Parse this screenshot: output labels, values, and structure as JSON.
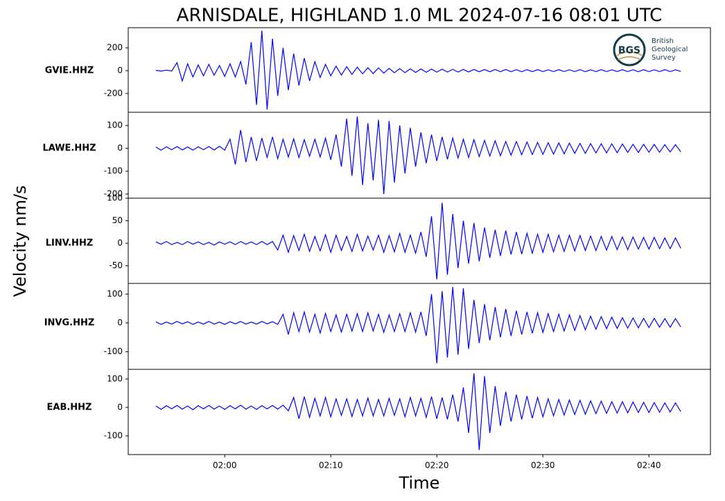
{
  "chart_data": {
    "type": "line",
    "title": "ARNISDALE, HIGHLAND 1.0 ML   2024-07-16 08:01 UTC",
    "xlabel": "Time",
    "ylabel": "Velocity nm/s",
    "xlim": [
      -9.1,
      45.8
    ],
    "xticks": [
      {
        "value": 0,
        "label": "02:00"
      },
      {
        "value": 10,
        "label": "02:10"
      },
      {
        "value": 20,
        "label": "02:20"
      },
      {
        "value": 30,
        "label": "02:30"
      },
      {
        "value": 40,
        "label": "02:40"
      }
    ],
    "x": [
      -6.5,
      -6,
      -5.5,
      -5,
      -4.5,
      -4,
      -3.5,
      -3,
      -2.5,
      -2,
      -1.5,
      -1,
      -0.5,
      0,
      0.5,
      1,
      1.5,
      2,
      2.5,
      3,
      3.5,
      4,
      4.5,
      5,
      5.5,
      6,
      6.5,
      7,
      7.5,
      8,
      8.5,
      9,
      9.5,
      10,
      10.5,
      11,
      11.5,
      12,
      12.5,
      13,
      13.5,
      14,
      14.5,
      15,
      15.5,
      16,
      16.5,
      17,
      17.5,
      18,
      18.5,
      19,
      19.5,
      20,
      20.5,
      21,
      21.5,
      22,
      22.5,
      23,
      23.5,
      24,
      24.5,
      25,
      25.5,
      26,
      26.5,
      27,
      27.5,
      28,
      28.5,
      29,
      29.5,
      30,
      30.5,
      31,
      31.5,
      32,
      32.5,
      33,
      33.5,
      34,
      34.5,
      35,
      35.5,
      36,
      36.5,
      37,
      37.5,
      38,
      38.5,
      39,
      39.5,
      40,
      40.5,
      41,
      41.5,
      42,
      42.5,
      43
    ],
    "panels": [
      {
        "label": "GVIE.HHZ",
        "color": "#0000ff",
        "ylim": [
          -364,
          376
        ],
        "yticks": [
          -200,
          0,
          200
        ],
        "values": [
          3,
          -4,
          5,
          -3,
          70,
          -90,
          60,
          -55,
          50,
          -45,
          55,
          -40,
          45,
          -50,
          60,
          -55,
          80,
          -120,
          250,
          -300,
          350,
          -340,
          280,
          -220,
          200,
          -170,
          150,
          -130,
          110,
          -90,
          80,
          -60,
          55,
          -45,
          40,
          -38,
          35,
          -32,
          30,
          -28,
          26,
          -25,
          24,
          -22,
          20,
          -18,
          18,
          -17,
          16,
          -15,
          15,
          -14,
          14,
          -13,
          13,
          -12,
          12,
          -12,
          11,
          -11,
          11,
          -10,
          10,
          -10,
          10,
          -9,
          10,
          -9,
          9,
          -9,
          9,
          -8,
          9,
          -8,
          8,
          -8,
          9,
          -8,
          8,
          -8,
          9,
          -9,
          8,
          -8,
          9,
          -8,
          8,
          -8,
          9,
          -8,
          8,
          -9,
          9,
          -8,
          8,
          -8,
          9,
          -8,
          8,
          -7
        ]
      },
      {
        "label": "LAWE.HHZ",
        "color": "#0000ff",
        "ylim": [
          -218,
          158
        ],
        "yticks": [
          -200,
          -100,
          0,
          100
        ],
        "values": [
          6,
          -8,
          7,
          -6,
          8,
          -7,
          6,
          -8,
          7,
          -6,
          8,
          -7,
          9,
          -8,
          40,
          -70,
          80,
          -60,
          50,
          -55,
          45,
          -40,
          50,
          -45,
          40,
          -38,
          42,
          -40,
          38,
          -35,
          40,
          -38,
          45,
          -50,
          60,
          -80,
          130,
          -120,
          140,
          -160,
          110,
          -140,
          125,
          -200,
          120,
          -150,
          100,
          -110,
          90,
          -80,
          70,
          -65,
          60,
          -55,
          50,
          -48,
          45,
          -42,
          40,
          -40,
          38,
          -36,
          35,
          -34,
          33,
          -32,
          30,
          -30,
          30,
          -28,
          28,
          -27,
          26,
          -26,
          25,
          -25,
          24,
          -24,
          23,
          -22,
          22,
          -22,
          21,
          -20,
          20,
          -20,
          20,
          -19,
          19,
          -18,
          18,
          -18,
          18,
          -17,
          17,
          -17,
          16,
          -16,
          16,
          -15
        ]
      },
      {
        "label": "LINV.HHZ",
        "color": "#0000ff",
        "ylim": [
          -89,
          100
        ],
        "yticks": [
          -50,
          0,
          50,
          100
        ],
        "values": [
          3,
          -2,
          4,
          -3,
          2,
          -3,
          4,
          -2,
          3,
          -3,
          2,
          -4,
          3,
          -2,
          3,
          -3,
          4,
          -2,
          3,
          -3,
          4,
          -3,
          4,
          -15,
          18,
          -20,
          17,
          -16,
          20,
          -18,
          15,
          -17,
          19,
          -20,
          18,
          -16,
          15,
          -18,
          20,
          -17,
          16,
          -15,
          18,
          -20,
          17,
          -19,
          22,
          -20,
          18,
          -22,
          25,
          -30,
          60,
          -80,
          90,
          -70,
          65,
          -55,
          50,
          -45,
          45,
          -40,
          35,
          -32,
          30,
          -28,
          28,
          -25,
          25,
          -24,
          22,
          -22,
          20,
          -20,
          20,
          -19,
          18,
          -18,
          18,
          -17,
          17,
          -16,
          16,
          -16,
          15,
          -15,
          15,
          -14,
          14,
          -14,
          14,
          -13,
          13,
          -13,
          13,
          -12,
          12,
          -12,
          12,
          -11
        ]
      },
      {
        "label": "INVG.HHZ",
        "color": "#0000ff",
        "ylim": [
          -161,
          137
        ],
        "yticks": [
          -100,
          0,
          100
        ],
        "values": [
          4,
          -5,
          3,
          -4,
          5,
          -3,
          4,
          -5,
          3,
          -4,
          5,
          -4,
          3,
          -5,
          4,
          -3,
          5,
          -4,
          3,
          -4,
          5,
          -3,
          4,
          -5,
          30,
          -40,
          35,
          -30,
          38,
          -32,
          30,
          -35,
          33,
          -30,
          28,
          -32,
          30,
          -28,
          32,
          -30,
          35,
          -28,
          30,
          -33,
          28,
          -30,
          32,
          -30,
          35,
          -32,
          38,
          -45,
          100,
          -140,
          110,
          -120,
          125,
          -110,
          120,
          -90,
          80,
          -70,
          65,
          -60,
          55,
          -50,
          48,
          -45,
          42,
          -40,
          38,
          -36,
          35,
          -33,
          32,
          -30,
          30,
          -28,
          28,
          -26,
          25,
          -24,
          23,
          -22,
          22,
          -20,
          20,
          -19,
          18,
          -18,
          17,
          -17,
          16,
          -16,
          16,
          -15,
          15,
          -15,
          15,
          -14
        ]
      },
      {
        "label": "EAB.HHZ",
        "color": "#0000ff",
        "ylim": [
          -166,
          134
        ],
        "yticks": [
          -100,
          0,
          100
        ],
        "values": [
          5,
          -7,
          6,
          -5,
          7,
          -6,
          5,
          -8,
          6,
          -5,
          7,
          -6,
          5,
          -7,
          6,
          -5,
          8,
          -6,
          5,
          -7,
          6,
          -5,
          7,
          -6,
          8,
          -12,
          35,
          -40,
          38,
          -35,
          32,
          -30,
          35,
          -33,
          30,
          -28,
          30,
          -32,
          28,
          -30,
          33,
          -30,
          28,
          -30,
          32,
          -28,
          30,
          -33,
          35,
          -30,
          32,
          -35,
          38,
          -40,
          35,
          -42,
          45,
          -50,
          70,
          -90,
          120,
          -150,
          110,
          -90,
          75,
          -65,
          55,
          -50,
          45,
          -42,
          40,
          -38,
          35,
          -33,
          30,
          -30,
          28,
          -27,
          26,
          -25,
          25,
          -24,
          23,
          -22,
          22,
          -21,
          20,
          -20,
          20,
          -19,
          19,
          -18,
          18,
          -18,
          17,
          -17,
          16,
          -16,
          16,
          -15
        ]
      }
    ]
  },
  "logo": {
    "mark": "BGS",
    "lines": [
      "British",
      "Geological",
      "Survey"
    ]
  }
}
